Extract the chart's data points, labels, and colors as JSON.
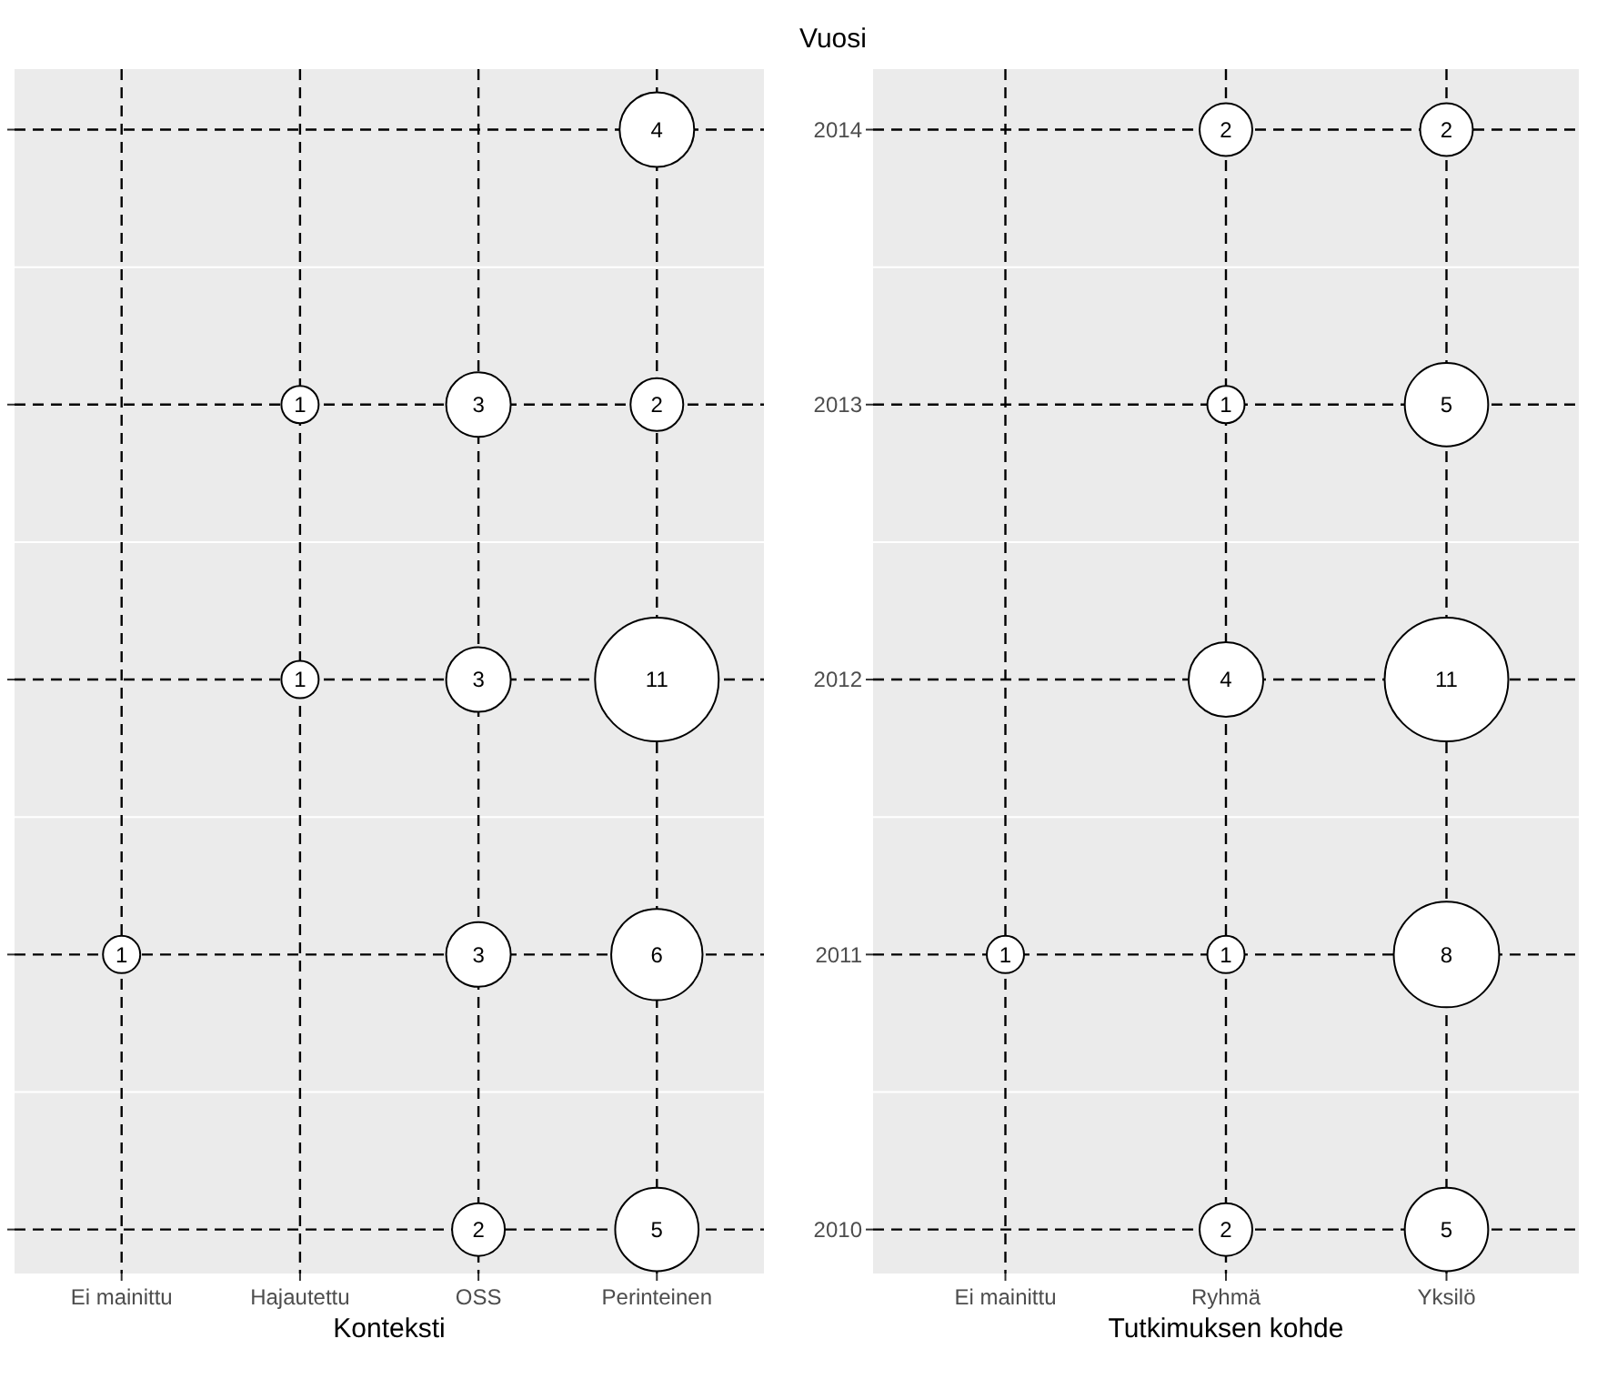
{
  "chart_data": [
    {
      "type": "bubble",
      "xlabel": "Konteksti",
      "categories": [
        "Ei mainittu",
        "Hajautettu",
        "OSS",
        "Perinteinen"
      ],
      "ylim": [
        2009.84,
        2014.22
      ],
      "yticks": [
        2010,
        2011,
        2012,
        2013,
        2014
      ],
      "tick_labels": "x",
      "grid": true,
      "line_style": "dashed",
      "marker": "circle",
      "series": [
        {
          "color": "#ffffff",
          "x": [
            "Perinteinen",
            "Hajautettu",
            "OSS",
            "Perinteinen",
            "Hajautettu",
            "OSS",
            "Perinteinen",
            "Ei mainittu",
            "OSS",
            "Perinteinen",
            "OSS",
            "Perinteinen"
          ],
          "values": [
            2014,
            2013,
            2013,
            2013,
            2012,
            2012,
            2012,
            2011,
            2011,
            2011,
            2010,
            2010
          ],
          "sizes": [
            4,
            1,
            3,
            2,
            1,
            3,
            11,
            1,
            3,
            6,
            2,
            5
          ],
          "value_labels": [
            "4",
            "1",
            "3",
            "2",
            "1",
            "3",
            "11",
            "1",
            "3",
            "6",
            "2",
            "5"
          ]
        }
      ]
    },
    {
      "type": "bubble",
      "xlabel": "Tutkimuksen kohde",
      "ylabel": "Vuosi",
      "categories": [
        "Ei mainittu",
        "Ryhmä",
        "Yksilö"
      ],
      "ylim": [
        2009.84,
        2014.22
      ],
      "yticks": [
        2010,
        2011,
        2012,
        2013,
        2014
      ],
      "grid": true,
      "line_style": "dashed",
      "marker": "circle",
      "series": [
        {
          "color": "#ffffff",
          "x": [
            "Ryhmä",
            "Yksilö",
            "Ryhmä",
            "Yksilö",
            "Ryhmä",
            "Yksilö",
            "Ei mainittu",
            "Ryhmä",
            "Yksilö",
            "Ryhmä",
            "Yksilö"
          ],
          "values": [
            2014,
            2014,
            2013,
            2013,
            2012,
            2012,
            2011,
            2011,
            2011,
            2010,
            2010
          ],
          "sizes": [
            2,
            2,
            1,
            5,
            4,
            11,
            1,
            1,
            8,
            2,
            5
          ],
          "value_labels": [
            "2",
            "2",
            "1",
            "5",
            "4",
            "11",
            "1",
            "1",
            "8",
            "2",
            "5"
          ]
        }
      ]
    }
  ]
}
